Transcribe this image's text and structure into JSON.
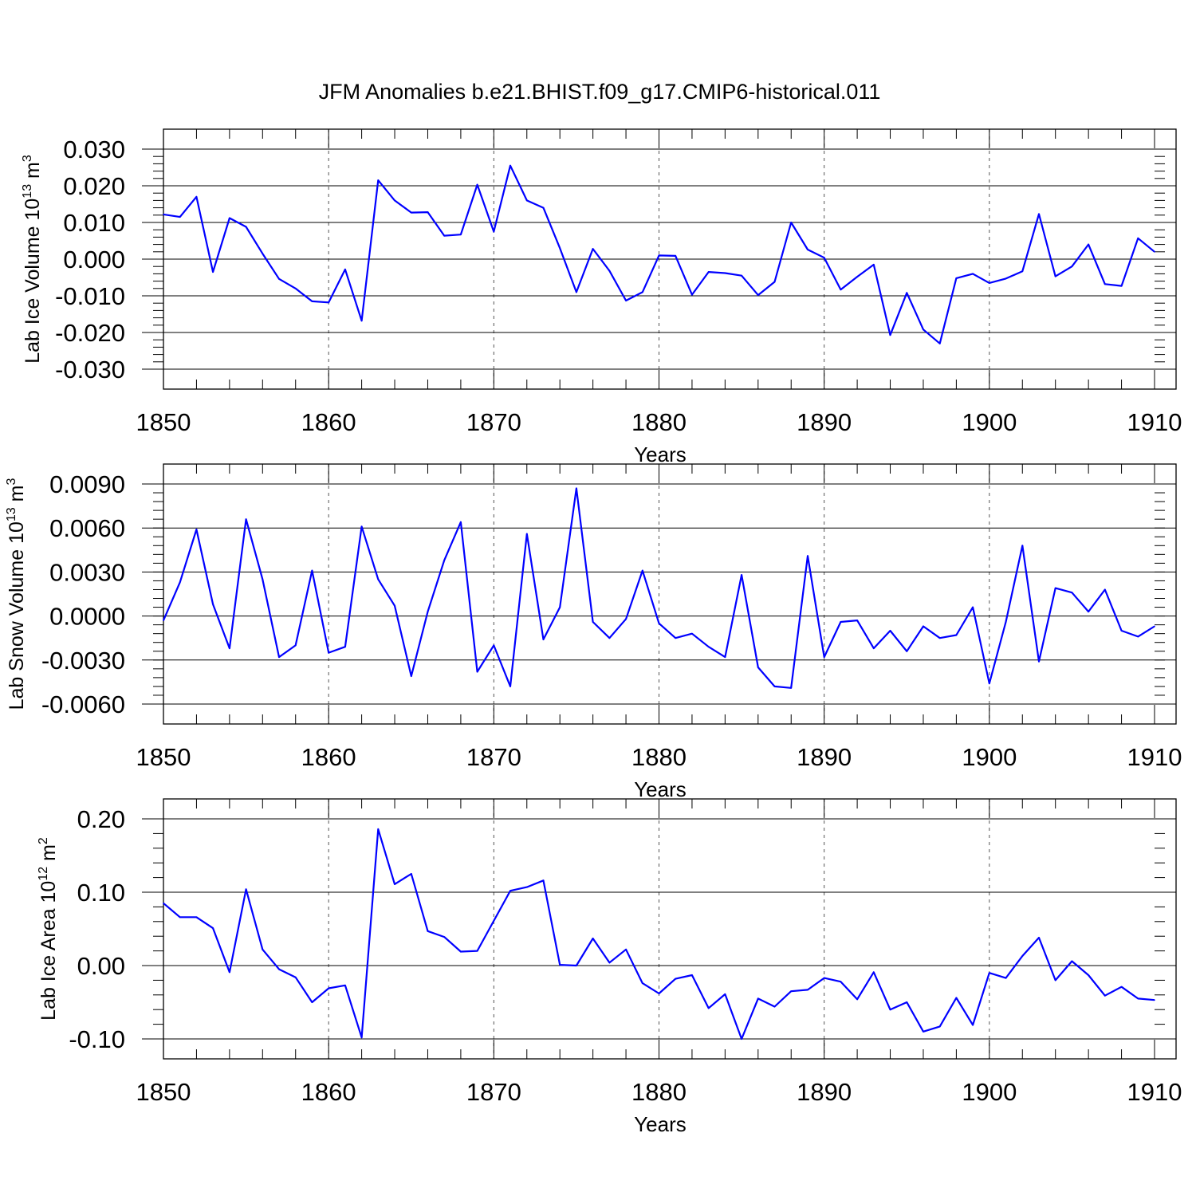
{
  "figure": {
    "title": "JFM Anomalies b.e21.BHIST.f09_g17.CMIP6-historical.011",
    "line_color": "#0000ff",
    "axis_color": "#000000",
    "grid_color": "#555555"
  },
  "chart_data": [
    {
      "type": "line",
      "ylabel_base": "Lab Ice Volume 10",
      "ylabel_exp": "13",
      "ylabel_unit": " m",
      "ylabel_unit_exp": "3",
      "xlabel": "Years",
      "xlim": [
        1850,
        1910
      ],
      "ylim": [
        -0.03,
        0.03
      ],
      "x_ticks": [
        "1850",
        "1860",
        "1870",
        "1880",
        "1890",
        "1900",
        "1910"
      ],
      "y_tick_values": [
        -0.03,
        -0.02,
        -0.01,
        0.0,
        0.01,
        0.02,
        0.03
      ],
      "y_tick_labels": [
        "-0.030",
        "-0.020",
        "-0.010",
        "0.000",
        "0.010",
        "0.020",
        "0.030"
      ],
      "x": [
        1850,
        1851,
        1852,
        1853,
        1854,
        1855,
        1856,
        1857,
        1858,
        1859,
        1860,
        1861,
        1862,
        1863,
        1864,
        1865,
        1866,
        1867,
        1868,
        1869,
        1870,
        1871,
        1872,
        1873,
        1874,
        1875,
        1876,
        1877,
        1878,
        1879,
        1880,
        1881,
        1882,
        1883,
        1884,
        1885,
        1886,
        1887,
        1888,
        1889,
        1890,
        1891,
        1892,
        1893,
        1894,
        1895,
        1896,
        1897,
        1898,
        1899,
        1900,
        1901,
        1902,
        1903,
        1904,
        1905,
        1906,
        1907,
        1908,
        1909,
        1910
      ],
      "values": [
        0.0122,
        0.0115,
        0.017,
        -0.0035,
        0.0112,
        0.0088,
        0.0015,
        -0.0054,
        -0.008,
        -0.0115,
        -0.0118,
        -0.0028,
        -0.0168,
        0.0215,
        0.016,
        0.0127,
        0.0128,
        0.0064,
        0.0067,
        0.0203,
        0.0075,
        0.0255,
        0.016,
        0.014,
        0.003,
        -0.009,
        0.0028,
        -0.0032,
        -0.0113,
        -0.009,
        0.001,
        0.0009,
        -0.0097,
        -0.0035,
        -0.0038,
        -0.0045,
        -0.0098,
        -0.0062,
        0.01,
        0.0026,
        0.0004,
        -0.0083,
        -0.0048,
        -0.0015,
        -0.0207,
        -0.0092,
        -0.0192,
        -0.023,
        -0.0052,
        -0.004,
        -0.0065,
        -0.0053,
        -0.0033,
        0.0123,
        -0.0047,
        -0.002,
        0.004,
        -0.0068,
        -0.0073,
        0.0057,
        0.002
      ]
    },
    {
      "type": "line",
      "ylabel_base": "Lab Snow Volume 10",
      "ylabel_exp": "13",
      "ylabel_unit": " m",
      "ylabel_unit_exp": "3",
      "xlabel": "Years",
      "xlim": [
        1850,
        1910
      ],
      "ylim": [
        -0.006,
        0.009
      ],
      "x_ticks": [
        "1850",
        "1860",
        "1870",
        "1880",
        "1890",
        "1900",
        "1910"
      ],
      "y_tick_values": [
        -0.006,
        -0.003,
        0.0,
        0.003,
        0.006,
        0.009
      ],
      "y_tick_labels": [
        "-0.0060",
        "-0.0030",
        "0.0000",
        "0.0030",
        "0.0060",
        "0.0090"
      ],
      "x": [
        1850,
        1851,
        1852,
        1853,
        1854,
        1855,
        1856,
        1857,
        1858,
        1859,
        1860,
        1861,
        1862,
        1863,
        1864,
        1865,
        1866,
        1867,
        1868,
        1869,
        1870,
        1871,
        1872,
        1873,
        1874,
        1875,
        1876,
        1877,
        1878,
        1879,
        1880,
        1881,
        1882,
        1883,
        1884,
        1885,
        1886,
        1887,
        1888,
        1889,
        1890,
        1891,
        1892,
        1893,
        1894,
        1895,
        1896,
        1897,
        1898,
        1899,
        1900,
        1901,
        1902,
        1903,
        1904,
        1905,
        1906,
        1907,
        1908,
        1909,
        1910
      ],
      "values": [
        -0.0003,
        0.0023,
        0.0059,
        0.0008,
        -0.0022,
        0.0066,
        0.0025,
        -0.0028,
        -0.002,
        0.0031,
        -0.0025,
        -0.0021,
        0.0061,
        0.0025,
        0.0007,
        -0.0041,
        0.0003,
        0.0038,
        0.0064,
        -0.0038,
        -0.002,
        -0.0048,
        0.0056,
        -0.0016,
        0.0006,
        0.0087,
        -0.0004,
        -0.0015,
        -0.0002,
        0.0031,
        -0.0005,
        -0.0015,
        -0.0012,
        -0.0021,
        -0.0028,
        0.0028,
        -0.0035,
        -0.0048,
        -0.0049,
        0.0041,
        -0.0028,
        -0.0004,
        -0.0003,
        -0.0022,
        -0.001,
        -0.0024,
        -0.0007,
        -0.0015,
        -0.0013,
        0.0006,
        -0.0046,
        -0.0004,
        0.0048,
        -0.0031,
        0.0019,
        0.0016,
        0.0003,
        0.0018,
        -0.001,
        -0.0014,
        -0.0007
      ]
    },
    {
      "type": "line",
      "ylabel_base": "Lab Ice Area 10",
      "ylabel_exp": "12",
      "ylabel_unit": " m",
      "ylabel_unit_exp": "2",
      "xlabel": "Years",
      "xlim": [
        1850,
        1910
      ],
      "ylim": [
        -0.1,
        0.2
      ],
      "x_ticks": [
        "1850",
        "1860",
        "1870",
        "1880",
        "1890",
        "1900",
        "1910"
      ],
      "y_tick_values": [
        -0.1,
        0.0,
        0.1,
        0.2
      ],
      "y_tick_labels": [
        "-0.10",
        "0.00",
        "0.10",
        "0.20"
      ],
      "x": [
        1850,
        1851,
        1852,
        1853,
        1854,
        1855,
        1856,
        1857,
        1858,
        1859,
        1860,
        1861,
        1862,
        1863,
        1864,
        1865,
        1866,
        1867,
        1868,
        1869,
        1870,
        1871,
        1872,
        1873,
        1874,
        1875,
        1876,
        1877,
        1878,
        1879,
        1880,
        1881,
        1882,
        1883,
        1884,
        1885,
        1886,
        1887,
        1888,
        1889,
        1890,
        1891,
        1892,
        1893,
        1894,
        1895,
        1896,
        1897,
        1898,
        1899,
        1900,
        1901,
        1902,
        1903,
        1904,
        1905,
        1906,
        1907,
        1908,
        1909,
        1910
      ],
      "values": [
        0.085,
        0.066,
        0.066,
        0.051,
        -0.009,
        0.104,
        0.022,
        -0.005,
        -0.016,
        -0.05,
        -0.031,
        -0.027,
        -0.098,
        0.186,
        0.111,
        0.125,
        0.047,
        0.039,
        0.019,
        0.02,
        0.061,
        0.102,
        0.107,
        0.116,
        0.001,
        0.0,
        0.037,
        0.004,
        0.022,
        -0.024,
        -0.038,
        -0.018,
        -0.013,
        -0.058,
        -0.039,
        -0.1,
        -0.045,
        -0.056,
        -0.035,
        -0.033,
        -0.017,
        -0.022,
        -0.046,
        -0.009,
        -0.06,
        -0.05,
        -0.09,
        -0.083,
        -0.044,
        -0.081,
        -0.01,
        -0.017,
        0.013,
        0.038,
        -0.02,
        0.006,
        -0.013,
        -0.041,
        -0.029,
        -0.045,
        -0.047
      ]
    }
  ]
}
